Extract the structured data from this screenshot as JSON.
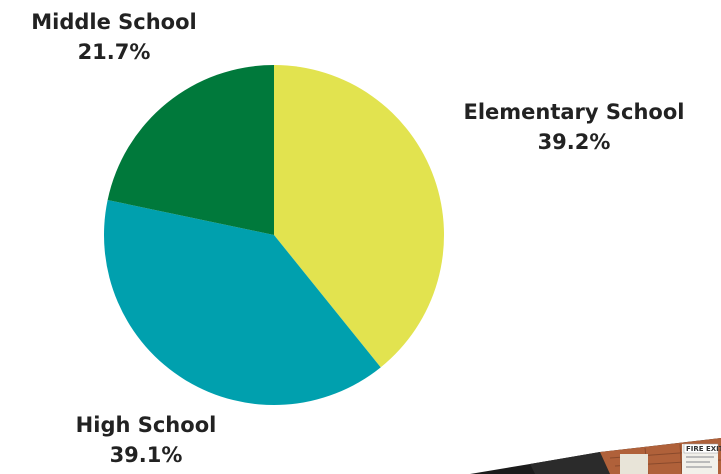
{
  "chart_data": {
    "type": "pie",
    "title": "",
    "slices": [
      {
        "label": "Elementary School",
        "value": 39.2,
        "value_label": "39.2%",
        "color": "#e2e34f"
      },
      {
        "label": "High School",
        "value": 39.1,
        "value_label": "39.1%",
        "color": "#00a0ae"
      },
      {
        "label": "Middle School",
        "value": 21.7,
        "value_label": "21.7%",
        "color": "#00793b"
      }
    ],
    "start_angle_deg": 0,
    "direction": "clockwise",
    "legend": "none"
  },
  "photo": {
    "sign_text": "FIRE EXIT"
  }
}
